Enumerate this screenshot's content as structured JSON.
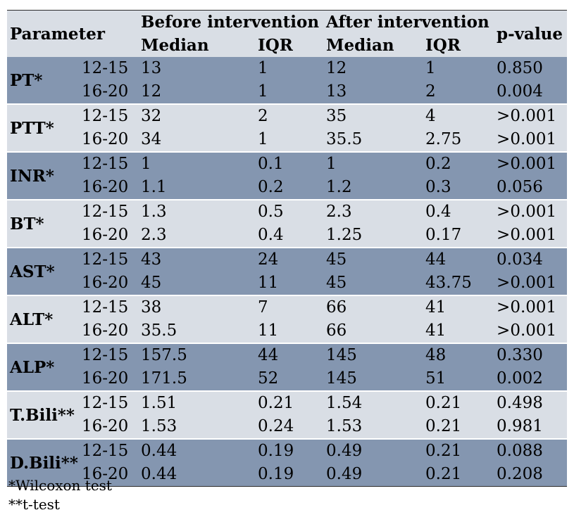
{
  "header": {
    "parameter": "Parameter",
    "before": "Before intervention",
    "after": "After intervention",
    "p_value": "p-value",
    "median": "Median",
    "iqr": "IQR"
  },
  "rows": [
    {
      "param": "PT*",
      "shade": "dark",
      "sub": [
        {
          "age": "12-15",
          "b_median": "13",
          "b_iqr": "1",
          "a_median": "12",
          "a_iqr": "1",
          "p": "0.850"
        },
        {
          "age": "16-20",
          "b_median": "12",
          "b_iqr": "1",
          "a_median": "13",
          "a_iqr": "2",
          "p": "0.004"
        }
      ]
    },
    {
      "param": "PTT*",
      "shade": "light",
      "sub": [
        {
          "age": "12-15",
          "b_median": "32",
          "b_iqr": "2",
          "a_median": "35",
          "a_iqr": "4",
          "p": ">0.001"
        },
        {
          "age": "16-20",
          "b_median": "34",
          "b_iqr": "1",
          "a_median": "35.5",
          "a_iqr": "2.75",
          "p": ">0.001"
        }
      ]
    },
    {
      "param": "INR*",
      "shade": "dark",
      "sub": [
        {
          "age": "12-15",
          "b_median": "1",
          "b_iqr": "0.1",
          "a_median": "1",
          "a_iqr": "0.2",
          "p": ">0.001"
        },
        {
          "age": "16-20",
          "b_median": "1.1",
          "b_iqr": "0.2",
          "a_median": "1.2",
          "a_iqr": "0.3",
          "p": "0.056"
        }
      ]
    },
    {
      "param": "BT*",
      "shade": "light",
      "sub": [
        {
          "age": "12-15",
          "b_median": "1.3",
          "b_iqr": "0.5",
          "a_median": "2.3",
          "a_iqr": "0.4",
          "p": ">0.001"
        },
        {
          "age": "16-20",
          "b_median": "2.3",
          "b_iqr": "0.4",
          "a_median": "1.25",
          "a_iqr": "0.17",
          "p": ">0.001"
        }
      ]
    },
    {
      "param": "AST*",
      "shade": "dark",
      "sub": [
        {
          "age": "12-15",
          "b_median": "43",
          "b_iqr": "24",
          "a_median": "45",
          "a_iqr": "44",
          "p": "0.034"
        },
        {
          "age": "16-20",
          "b_median": "45",
          "b_iqr": "11",
          "a_median": "45",
          "a_iqr": "43.75",
          "p": ">0.001"
        }
      ]
    },
    {
      "param": "ALT*",
      "shade": "light",
      "sub": [
        {
          "age": "12-15",
          "b_median": "38",
          "b_iqr": "7",
          "a_median": "66",
          "a_iqr": "41",
          "p": ">0.001"
        },
        {
          "age": "16-20",
          "b_median": "35.5",
          "b_iqr": "11",
          "a_median": "66",
          "a_iqr": "41",
          "p": ">0.001"
        }
      ]
    },
    {
      "param": "ALP*",
      "shade": "dark",
      "sub": [
        {
          "age": "12-15",
          "b_median": "157.5",
          "b_iqr": "44",
          "a_median": "145",
          "a_iqr": "48",
          "p": "0.330"
        },
        {
          "age": "16-20",
          "b_median": "171.5",
          "b_iqr": "52",
          "a_median": "145",
          "a_iqr": "51",
          "p": "0.002"
        }
      ]
    },
    {
      "param": "T.Bili**",
      "shade": "light",
      "sub": [
        {
          "age": "12-15",
          "b_median": "1.51",
          "b_iqr": "0.21",
          "a_median": "1.54",
          "a_iqr": "0.21",
          "p": "0.498"
        },
        {
          "age": "16-20",
          "b_median": "1.53",
          "b_iqr": "0.24",
          "a_median": "1.53",
          "a_iqr": "0.21",
          "p": "0.981"
        }
      ]
    },
    {
      "param": "D.Bili**",
      "shade": "dark",
      "sub": [
        {
          "age": "12-15",
          "b_median": "0.44",
          "b_iqr": "0.19",
          "a_median": "0.49",
          "a_iqr": "0.21",
          "p": "0.088"
        },
        {
          "age": "16-20",
          "b_median": "0.44",
          "b_iqr": "0.19",
          "a_median": "0.49",
          "a_iqr": "0.21",
          "p": "0.208"
        }
      ]
    }
  ],
  "footnotes": [
    "*Wilcoxon test",
    "**t-test"
  ],
  "colors": {
    "dark": "#8496b0",
    "light": "#d9dee5"
  }
}
